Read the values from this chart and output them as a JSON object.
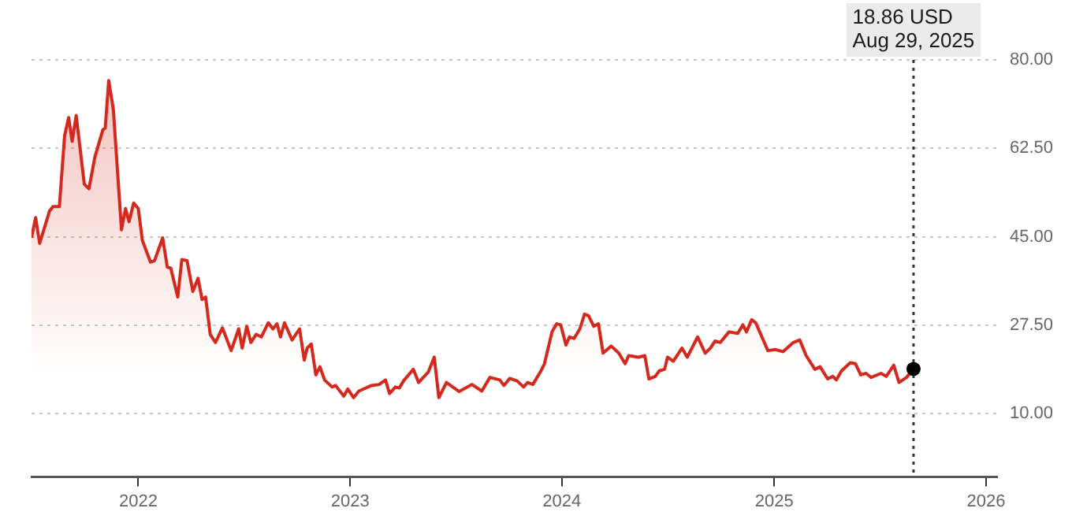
{
  "chart_data": {
    "type": "area",
    "x": [
      "2021-07-01",
      "2021-07-08",
      "2021-07-15",
      "2021-08-01",
      "2021-08-07",
      "2021-08-18",
      "2021-08-27",
      "2021-09-03",
      "2021-09-09",
      "2021-09-16",
      "2021-09-30",
      "2021-10-08",
      "2021-10-18",
      "2021-11-01",
      "2021-11-05",
      "2021-11-11",
      "2021-11-19",
      "2021-12-03",
      "2021-12-10",
      "2021-12-16",
      "2021-12-24",
      "2022-01-01",
      "2022-01-08",
      "2022-01-22",
      "2022-01-29",
      "2022-02-12",
      "2022-02-20",
      "2022-02-26",
      "2022-03-10",
      "2022-03-17",
      "2022-03-26",
      "2022-04-05",
      "2022-04-14",
      "2022-04-21",
      "2022-04-27",
      "2022-05-05",
      "2022-05-14",
      "2022-05-26",
      "2022-06-10",
      "2022-06-23",
      "2022-06-29",
      "2022-07-07",
      "2022-07-14",
      "2022-07-23",
      "2022-08-01",
      "2022-08-13",
      "2022-08-21",
      "2022-08-28",
      "2022-09-03",
      "2022-09-10",
      "2022-09-23",
      "2022-10-06",
      "2022-10-14",
      "2022-10-19",
      "2022-10-26",
      "2022-11-03",
      "2022-11-10",
      "2022-11-18",
      "2022-12-01",
      "2022-12-07",
      "2022-12-21",
      "2022-12-28",
      "2023-01-07",
      "2023-01-16",
      "2023-02-07",
      "2023-02-20",
      "2023-03-03",
      "2023-03-10",
      "2023-03-20",
      "2023-03-27",
      "2023-04-03",
      "2023-04-20",
      "2023-04-29",
      "2023-05-16",
      "2023-05-26",
      "2023-06-03",
      "2023-06-16",
      "2023-07-08",
      "2023-07-30",
      "2023-08-16",
      "2023-08-30",
      "2023-09-16",
      "2023-09-23",
      "2023-10-03",
      "2023-10-16",
      "2023-10-27",
      "2023-11-03",
      "2023-11-12",
      "2023-11-25",
      "2023-12-02",
      "2023-12-15",
      "2023-12-23",
      "2023-12-30",
      "2024-01-08",
      "2024-01-14",
      "2024-01-22",
      "2024-02-01",
      "2024-02-09",
      "2024-02-16",
      "2024-02-25",
      "2024-03-04",
      "2024-03-12",
      "2024-03-26",
      "2024-04-08",
      "2024-04-19",
      "2024-04-25",
      "2024-05-12",
      "2024-05-23",
      "2024-05-30",
      "2024-06-10",
      "2024-06-17",
      "2024-06-26",
      "2024-07-01",
      "2024-07-11",
      "2024-07-26",
      "2024-08-04",
      "2024-08-22",
      "2024-09-04",
      "2024-09-13",
      "2024-09-21",
      "2024-09-30",
      "2024-10-15",
      "2024-10-30",
      "2024-11-08",
      "2024-11-14",
      "2024-11-23",
      "2024-11-30",
      "2024-12-21",
      "2025-01-03",
      "2025-01-16",
      "2025-02-03",
      "2025-02-14",
      "2025-02-25",
      "2025-03-12",
      "2025-03-21",
      "2025-04-03",
      "2025-04-12",
      "2025-04-18",
      "2025-04-27",
      "2025-05-12",
      "2025-05-21",
      "2025-05-30",
      "2025-06-08",
      "2025-06-17",
      "2025-07-04",
      "2025-07-13",
      "2025-07-26",
      "2025-08-04",
      "2025-08-17",
      "2025-08-29"
    ],
    "series": [
      {
        "color": "#d42a1e",
        "values": [
          44.8,
          48.8,
          43.7,
          50.1,
          51,
          51,
          65,
          68.6,
          63.9,
          69,
          55.4,
          54.5,
          60.7,
          66.2,
          66.5,
          75.9,
          70.2,
          46.4,
          50.6,
          48,
          51.7,
          50.6,
          44.3,
          40,
          40.3,
          44.8,
          39,
          38.8,
          33.1,
          40.5,
          40.3,
          34.2,
          36.8,
          32.6,
          33.1,
          25.7,
          24.1,
          27,
          22.5,
          26.8,
          23,
          27.3,
          24.1,
          25.7,
          25.2,
          28,
          26.8,
          27.8,
          25.2,
          28,
          24.6,
          26.8,
          20.6,
          23,
          23.8,
          17.7,
          19.3,
          16.7,
          15.3,
          15.6,
          13.5,
          14.9,
          13.2,
          14.5,
          15.6,
          15.8,
          16.7,
          14,
          15.3,
          15.1,
          16.5,
          18.8,
          16.2,
          18.3,
          21.2,
          13.2,
          16.2,
          14.4,
          15.8,
          14.5,
          17.2,
          16.7,
          15.6,
          17,
          16.5,
          15.3,
          16.2,
          15.8,
          18.3,
          19.9,
          26.2,
          27.8,
          27.6,
          23.6,
          25.2,
          24.9,
          26.8,
          29.7,
          29.4,
          27.3,
          27.8,
          22,
          23.4,
          22,
          19.9,
          21.5,
          21.2,
          21.5,
          16.9,
          17.4,
          18.5,
          18.8,
          21.2,
          20.4,
          23,
          21.2,
          25.2,
          22,
          23,
          24.4,
          24.1,
          26.2,
          25.9,
          27.6,
          26.2,
          28.6,
          28,
          22.5,
          22.7,
          22.3,
          24.1,
          24.6,
          21.5,
          18.8,
          19.3,
          16.9,
          17.4,
          16.7,
          18.5,
          20.1,
          19.9,
          17.7,
          18,
          17.2,
          18,
          17.4,
          19.6,
          16.2,
          17.2,
          18.86
        ]
      }
    ],
    "xlim": [
      "2021-07-01",
      "2026-01-20"
    ],
    "xticks": [
      {
        "value": "2022-01-01",
        "label": "2022"
      },
      {
        "value": "2023-01-01",
        "label": "2023"
      },
      {
        "value": "2024-01-01",
        "label": "2024"
      },
      {
        "value": "2025-01-01",
        "label": "2025"
      },
      {
        "value": "2026-01-01",
        "label": "2026"
      }
    ],
    "ylim": [
      -2.5,
      80
    ],
    "yticks": [
      {
        "value": 10,
        "label": "10.00"
      },
      {
        "value": 27.5,
        "label": "27.50"
      },
      {
        "value": 45,
        "label": "45.00"
      },
      {
        "value": 62.5,
        "label": "62.50"
      },
      {
        "value": 80,
        "label": "80.00"
      }
    ],
    "grid": "y",
    "legend": false,
    "marker": "none",
    "line_style": "solid",
    "ref_lines": [
      {
        "axis": "x",
        "value": "2025-08-29",
        "color": "#333333",
        "line_style": "dotted"
      }
    ],
    "annotations": [
      "18.86 USD",
      "Aug 29, 2025"
    ]
  }
}
